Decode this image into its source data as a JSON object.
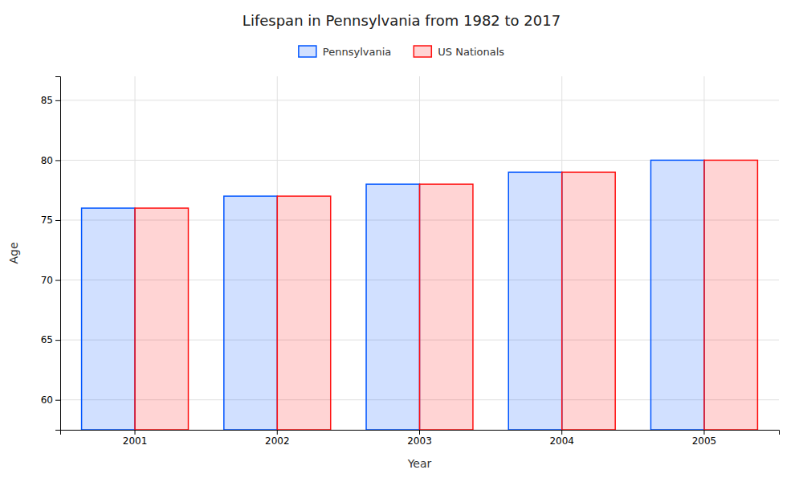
{
  "chart_data": {
    "type": "bar",
    "title": "Lifespan in Pennsylvania from 1982 to 2017",
    "xlabel": "Year",
    "ylabel": "Age",
    "categories": [
      "2001",
      "2002",
      "2003",
      "2004",
      "2005"
    ],
    "series": [
      {
        "name": "Pennsylvania",
        "color": "#0055ff",
        "values": [
          76,
          77,
          78,
          79,
          80
        ]
      },
      {
        "name": "US Nationals",
        "color": "#ff1111",
        "values": [
          76,
          77,
          78,
          79,
          80
        ]
      }
    ],
    "ylim": [
      57.5,
      87
    ],
    "yticks": [
      60,
      65,
      70,
      75,
      80,
      85
    ],
    "grid": true,
    "legend": "top"
  }
}
